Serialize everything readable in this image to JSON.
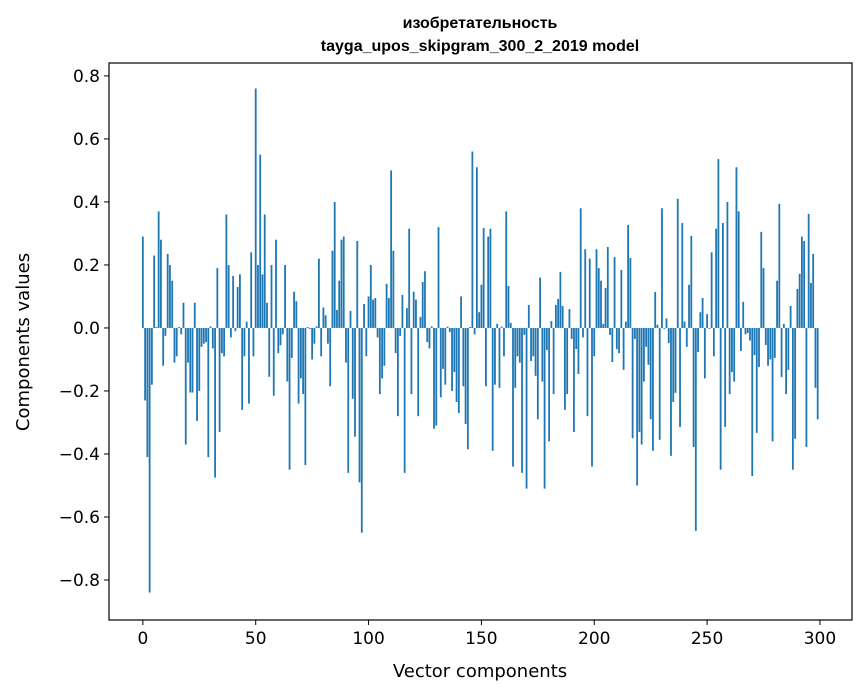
{
  "chart_data": {
    "type": "bar",
    "title": "изобретательность",
    "subtitle": "tayga_upos_skipgram_300_2_2019 model",
    "xlabel": "Vector components",
    "ylabel": "Components values",
    "xlim": [
      -15,
      314.2
    ],
    "ylim": [
      -0.927,
      0.841
    ],
    "xticks": [
      0,
      50,
      100,
      150,
      200,
      250,
      300
    ],
    "xtick_labels": [
      "0",
      "50",
      "100",
      "150",
      "200",
      "250",
      "300"
    ],
    "yticks": [
      -0.8,
      -0.6,
      -0.4,
      -0.2,
      0.0,
      0.2,
      0.4,
      0.6,
      0.8
    ],
    "ytick_labels": [
      "−0.8",
      "−0.6",
      "−0.4",
      "−0.2",
      "0.0",
      "0.2",
      "0.4",
      "0.6",
      "0.8"
    ],
    "grid": false,
    "bar_color": "#1f77b4",
    "values": [
      0.29,
      -0.23,
      -0.41,
      -0.84,
      -0.18,
      0.23,
      0.003,
      0.37,
      0.28,
      -0.12,
      -0.025,
      0.235,
      0.2,
      0.15,
      -0.11,
      -0.09,
      0.003,
      -0.02,
      0.08,
      -0.37,
      -0.11,
      -0.205,
      -0.205,
      0.08,
      -0.295,
      -0.2,
      -0.06,
      -0.05,
      -0.045,
      -0.41,
      0.005,
      -0.065,
      -0.475,
      0.19,
      -0.33,
      -0.08,
      -0.09,
      0.36,
      0.2,
      -0.03,
      0.165,
      -0.01,
      0.13,
      0.17,
      -0.26,
      -0.09,
      0.02,
      -0.24,
      0.24,
      -0.09,
      0.76,
      0.2,
      0.55,
      0.17,
      0.36,
      0.08,
      -0.155,
      0.2,
      -0.215,
      0.28,
      -0.08,
      -0.055,
      -0.02,
      0.2,
      -0.17,
      -0.45,
      -0.095,
      0.115,
      0.085,
      -0.24,
      -0.16,
      -0.21,
      -0.435,
      0.003,
      -0.003,
      -0.1,
      -0.05,
      0.005,
      0.22,
      -0.09,
      0.065,
      0.04,
      -0.05,
      -0.185,
      0.245,
      0.4,
      0.057,
      0.15,
      0.28,
      0.29,
      -0.11,
      -0.46,
      0.054,
      -0.225,
      -0.345,
      0.276,
      -0.49,
      -0.65,
      0.076,
      -0.09,
      0.1,
      0.2,
      0.09,
      0.095,
      -0.03,
      -0.21,
      -0.16,
      -0.12,
      0.14,
      0.095,
      0.5,
      0.245,
      -0.08,
      -0.28,
      -0.025,
      0.105,
      -0.46,
      0.063,
      0.315,
      -0.21,
      0.115,
      0.09,
      -0.28,
      0.035,
      0.146,
      0.18,
      -0.045,
      -0.065,
      0.005,
      -0.32,
      -0.31,
      0.32,
      -0.22,
      -0.13,
      -0.18,
      0.004,
      -0.013,
      -0.2,
      -0.14,
      -0.235,
      -0.27,
      0.1,
      -0.185,
      -0.305,
      -0.385,
      0.003,
      0.56,
      -0.02,
      0.51,
      0.05,
      0.137,
      0.317,
      -0.185,
      0.29,
      0.315,
      -0.39,
      -0.18,
      0.013,
      -0.19,
      0.004,
      -0.09,
      0.37,
      0.133,
      0.016,
      -0.44,
      -0.19,
      -0.09,
      -0.11,
      -0.46,
      -0.022,
      -0.51,
      0.073,
      -0.105,
      -0.09,
      -0.152,
      -0.29,
      0.16,
      -0.17,
      -0.51,
      -0.07,
      -0.36,
      0.022,
      -0.21,
      0.073,
      0.092,
      0.178,
      0.07,
      -0.26,
      -0.21,
      0.06,
      -0.035,
      -0.33,
      -0.067,
      -0.146,
      0.38,
      -0.03,
      0.25,
      -0.28,
      0.22,
      -0.44,
      -0.09,
      0.25,
      0.19,
      0.15,
      0.013,
      0.127,
      0.257,
      -0.022,
      -0.108,
      0.225,
      -0.067,
      -0.08,
      0.184,
      -0.133,
      0.02,
      0.327,
      0.222,
      -0.35,
      -0.035,
      -0.5,
      -0.33,
      -0.37,
      -0.17,
      -0.06,
      -0.117,
      -0.29,
      -0.39,
      0.114,
      0.01,
      -0.355,
      0.38,
      -0.003,
      0.03,
      -0.048,
      -0.406,
      -0.235,
      -0.206,
      0.41,
      -0.314,
      0.333,
      0.02,
      -0.06,
      0.137,
      0.292,
      -0.378,
      -0.644,
      -0.076,
      0.05,
      0.095,
      -0.16,
      0.044,
      -0.003,
      0.24,
      -0.09,
      0.315,
      0.536,
      -0.45,
      0.333,
      -0.314,
      0.4,
      -0.21,
      -0.14,
      -0.17,
      0.51,
      0.37,
      -0.073,
      0.083,
      -0.02,
      -0.016,
      -0.04,
      -0.47,
      -0.086,
      -0.333,
      -0.124,
      0.305,
      0.19,
      -0.054,
      -0.12,
      -0.1,
      -0.36,
      -0.095,
      0.15,
      0.394,
      -0.156,
      0.013,
      -0.21,
      -0.133,
      0.07,
      -0.45,
      -0.352,
      0.124,
      0.172,
      0.29,
      0.276,
      -0.378,
      0.362,
      0.143,
      0.235,
      -0.19,
      -0.29
    ]
  }
}
